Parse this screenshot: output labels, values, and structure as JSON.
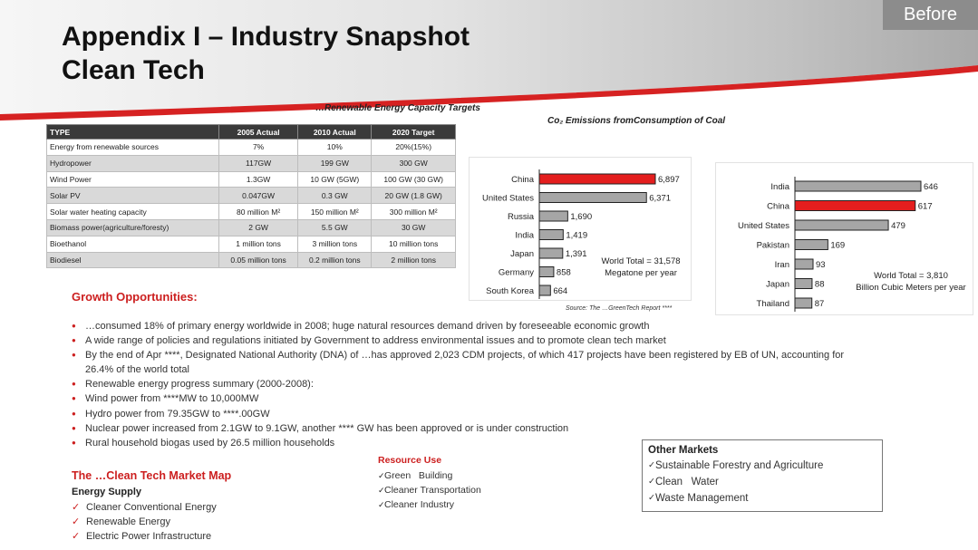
{
  "header": {
    "badge": "Before",
    "title_line1": "Appendix I – Industry Snapshot",
    "title_line2": "Clean Tech"
  },
  "table": {
    "caption": "…Renewable Energy Capacity Targets",
    "headers": [
      "TYPE",
      "2005 Actual",
      "2010 Actual",
      "2020 Target"
    ],
    "rows": [
      [
        "Energy from renewable sources",
        "7%",
        "10%",
        "20%(15%)"
      ],
      [
        "Hydropower",
        "117GW",
        "199 GW",
        "300 GW"
      ],
      [
        "Wind Power",
        "1.3GW",
        "10 GW (5GW)",
        "100 GW (30 GW)"
      ],
      [
        "Solar PV",
        "0.047GW",
        "0.3 GW",
        "20 GW (1.8 GW)"
      ],
      [
        "Solar water heating capacity",
        "80 million M²",
        "150 million M²",
        "300 million M²"
      ],
      [
        "Biomass power(agriculture/foresty)",
        "2 GW",
        "5.5 GW",
        "30 GW"
      ],
      [
        "Bioethanol",
        "1 million tons",
        "3 million tons",
        "10 million tons"
      ],
      [
        "Biodiesel",
        "0.05 million tons",
        "0.2 million tons",
        "2 million tons"
      ]
    ]
  },
  "charts": {
    "co2_caption": "Co₂ Emissions fromConsumption of Coal",
    "source": "Source: The …GreenTech Report ****",
    "colors": {
      "highlight": "#e41e1e",
      "bar": "#a6a6a6",
      "outline": "#222222"
    }
  },
  "chart_data": [
    {
      "type": "bar",
      "orientation": "horizontal",
      "categories": [
        "China",
        "United States",
        "Russia",
        "India",
        "Japan",
        "Germany",
        "South Korea"
      ],
      "values": [
        6897,
        6371,
        1690,
        1419,
        1391,
        858,
        664
      ],
      "value_labels": [
        "6,897",
        "6,371",
        "1,690",
        "1,419",
        "1,391",
        "858",
        "664"
      ],
      "highlight": "China",
      "annotation_line1": "World Total = 31,578",
      "annotation_line2": "Megatone per year"
    },
    {
      "type": "bar",
      "orientation": "horizontal",
      "categories": [
        "India",
        "China",
        "United States",
        "Pakistan",
        "Iran",
        "Japan",
        "Thailand"
      ],
      "values": [
        646,
        617,
        479,
        169,
        93,
        88,
        87
      ],
      "value_labels": [
        "646",
        "617",
        "479",
        "169",
        "93",
        "88",
        "87"
      ],
      "highlight": "China",
      "annotation_line1": "World Total = 3,810",
      "annotation_line2": "Billion Cubic Meters per year"
    }
  ],
  "growth": {
    "title": "Growth Opportunities:",
    "bullets": [
      "…consumed 18% of primary energy worldwide in 2008; huge natural resources demand driven by foreseeable economic growth",
      "A wide range of policies and regulations initiated by Government to address environmental issues and to promote clean tech market",
      "By the end of Apr ****, Designated National Authority (DNA) of …has approved 2,023 CDM projects, of which 417 projects have been registered by EB of UN, accounting for 26.4% of the world total",
      "Renewable energy progress summary (2000-2008):",
      "Wind power from ****MW to 10,000MW",
      "Hydro power from 79.35GW to ****.00GW",
      "Nuclear power increased from 2.1GW to 9.1GW, another **** GW has been approved or is under construction",
      "Rural household biogas used by 26.5 million households"
    ]
  },
  "market_map": {
    "title": "The …Clean Tech Market Map",
    "energy_supply": {
      "heading": "Energy Supply",
      "items": [
        "Cleaner Conventional Energy",
        "Renewable Energy",
        "Electric Power Infrastructure"
      ]
    },
    "resource_use": {
      "heading": "Resource Use",
      "items": [
        "Green   Building",
        "Cleaner Transportation",
        "Cleaner Industry"
      ]
    },
    "other_markets": {
      "heading": "Other Markets",
      "items": [
        "Sustainable Forestry and Agriculture",
        "Clean   Water",
        "Waste Management"
      ]
    }
  }
}
